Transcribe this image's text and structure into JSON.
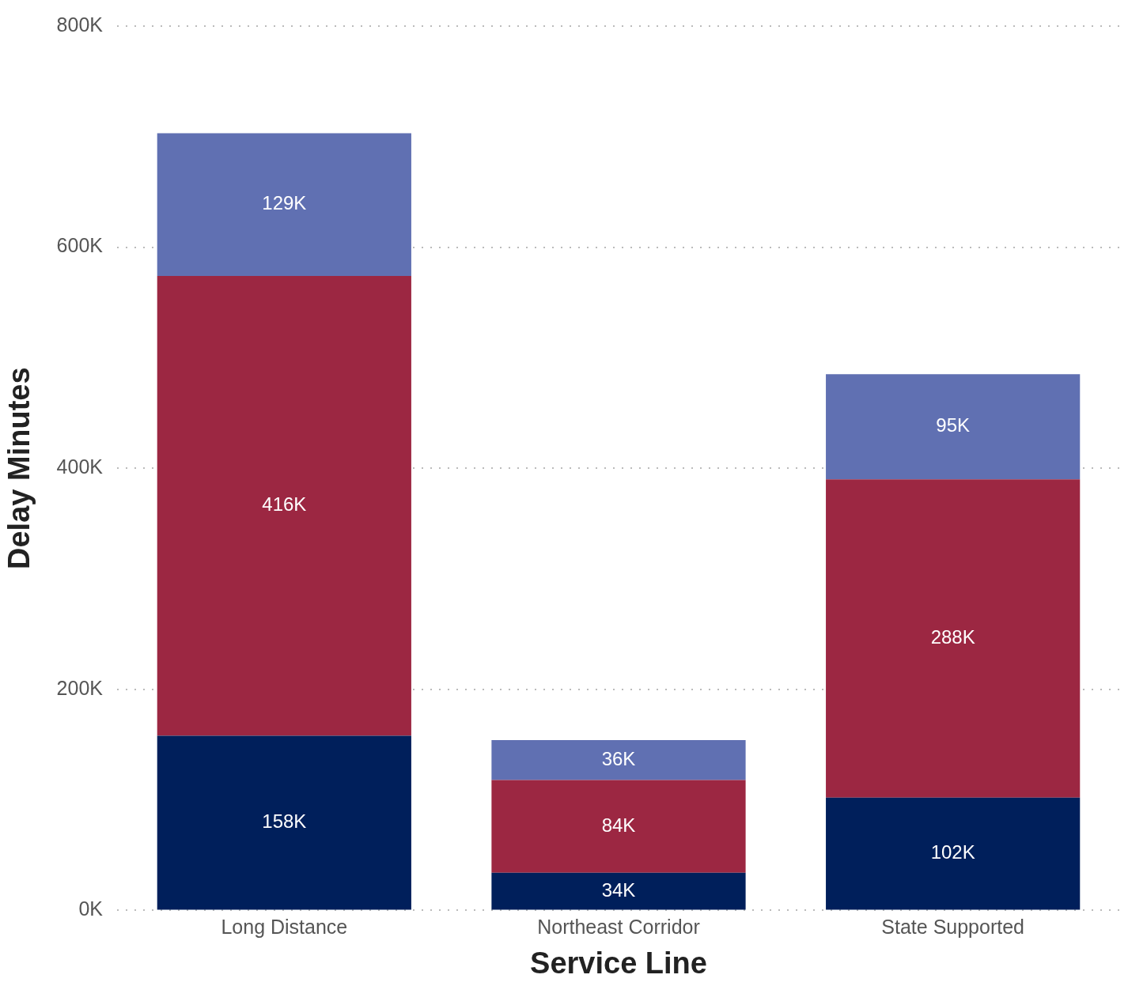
{
  "chart_data": {
    "type": "bar",
    "stacked": true,
    "xlabel": "Service Line",
    "ylabel": "Delay Minutes",
    "categories": [
      "Long Distance",
      "Northeast Corridor",
      "State Supported"
    ],
    "series": [
      {
        "color": "#001f5b",
        "values": [
          158000,
          34000,
          102000
        ],
        "value_labels": [
          "158K",
          "34K",
          "102K"
        ]
      },
      {
        "color": "#9c2742",
        "values": [
          416000,
          84000,
          288000
        ],
        "value_labels": [
          "416K",
          "84K",
          "288K"
        ]
      },
      {
        "color": "#6070b2",
        "values": [
          129000,
          36000,
          95000
        ],
        "value_labels": [
          "129K",
          "36K",
          "95K"
        ]
      }
    ],
    "ylim": [
      0,
      800000
    ],
    "yticks": [
      {
        "value": 0,
        "label": "0K"
      },
      {
        "value": 200000,
        "label": "200K"
      },
      {
        "value": 400000,
        "label": "400K"
      },
      {
        "value": 600000,
        "label": "600K"
      },
      {
        "value": 800000,
        "label": "800K"
      }
    ],
    "grid": "y",
    "legend": false
  }
}
